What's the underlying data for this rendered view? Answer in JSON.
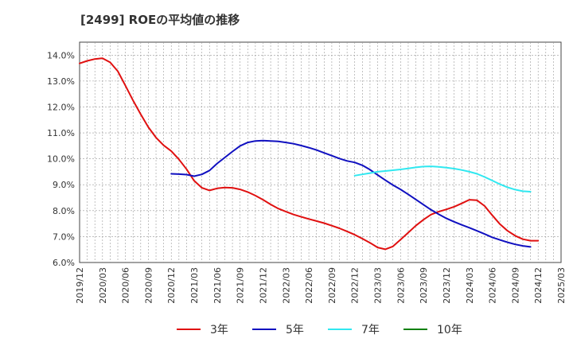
{
  "chart_data": {
    "type": "line",
    "title": "[2499]  ROEの平均値の推移",
    "xlabel": "",
    "ylabel": "",
    "ylim": [
      6.0,
      14.5
    ],
    "y_ticks": [
      "6.0%",
      "7.0%",
      "8.0%",
      "9.0%",
      "10.0%",
      "11.0%",
      "12.0%",
      "13.0%",
      "14.0%"
    ],
    "y_tick_values": [
      6,
      7,
      8,
      9,
      10,
      11,
      12,
      13,
      14
    ],
    "categories": [
      "2019/12",
      "2020/03",
      "2020/06",
      "2020/09",
      "2020/12",
      "2021/03",
      "2021/06",
      "2021/09",
      "2021/12",
      "2022/03",
      "2022/06",
      "2022/09",
      "2022/12",
      "2023/03",
      "2023/06",
      "2023/09",
      "2023/12",
      "2024/03",
      "2024/06",
      "2024/09",
      "2024/12",
      "2025/03"
    ],
    "grid": true,
    "legend_position": "bottom",
    "series": [
      {
        "name": "3年",
        "color": "#e01010",
        "points": [
          [
            0,
            13.68
          ],
          [
            1,
            13.78
          ],
          [
            2,
            13.85
          ],
          [
            3,
            13.88
          ],
          [
            4,
            13.72
          ],
          [
            5,
            13.38
          ],
          [
            6,
            12.82
          ],
          [
            7,
            12.25
          ],
          [
            8,
            11.72
          ],
          [
            9,
            11.22
          ],
          [
            10,
            10.82
          ],
          [
            11,
            10.52
          ],
          [
            12,
            10.3
          ],
          [
            13,
            9.98
          ],
          [
            14,
            9.6
          ],
          [
            15,
            9.15
          ],
          [
            16,
            8.88
          ],
          [
            17,
            8.78
          ],
          [
            18,
            8.86
          ],
          [
            19,
            8.89
          ],
          [
            20,
            8.88
          ],
          [
            21,
            8.82
          ],
          [
            22,
            8.72
          ],
          [
            23,
            8.58
          ],
          [
            24,
            8.42
          ],
          [
            25,
            8.24
          ],
          [
            26,
            8.08
          ],
          [
            27,
            7.96
          ],
          [
            28,
            7.85
          ],
          [
            29,
            7.76
          ],
          [
            30,
            7.68
          ],
          [
            31,
            7.6
          ],
          [
            32,
            7.52
          ],
          [
            33,
            7.42
          ],
          [
            34,
            7.32
          ],
          [
            35,
            7.2
          ],
          [
            36,
            7.07
          ],
          [
            37,
            6.92
          ],
          [
            38,
            6.76
          ],
          [
            39,
            6.58
          ],
          [
            40,
            6.51
          ],
          [
            41,
            6.62
          ],
          [
            42,
            6.88
          ],
          [
            43,
            7.15
          ],
          [
            44,
            7.42
          ],
          [
            45,
            7.65
          ],
          [
            46,
            7.85
          ],
          [
            47,
            7.96
          ],
          [
            48,
            8.05
          ],
          [
            49,
            8.15
          ],
          [
            50,
            8.28
          ],
          [
            51,
            8.42
          ],
          [
            52,
            8.4
          ],
          [
            53,
            8.18
          ],
          [
            54,
            7.82
          ],
          [
            55,
            7.48
          ],
          [
            56,
            7.22
          ],
          [
            57,
            7.03
          ],
          [
            58,
            6.9
          ],
          [
            59,
            6.84
          ],
          [
            60,
            6.84
          ]
        ]
      },
      {
        "name": "5年",
        "color": "#1010c0",
        "points": [
          [
            12,
            9.42
          ],
          [
            13,
            9.41
          ],
          [
            14,
            9.39
          ],
          [
            15,
            9.33
          ],
          [
            16,
            9.4
          ],
          [
            17,
            9.55
          ],
          [
            18,
            9.82
          ],
          [
            19,
            10.05
          ],
          [
            20,
            10.28
          ],
          [
            21,
            10.5
          ],
          [
            22,
            10.63
          ],
          [
            23,
            10.69
          ],
          [
            24,
            10.7
          ],
          [
            25,
            10.69
          ],
          [
            26,
            10.67
          ],
          [
            27,
            10.63
          ],
          [
            28,
            10.58
          ],
          [
            29,
            10.51
          ],
          [
            30,
            10.43
          ],
          [
            31,
            10.34
          ],
          [
            32,
            10.23
          ],
          [
            33,
            10.12
          ],
          [
            34,
            10.01
          ],
          [
            35,
            9.92
          ],
          [
            36,
            9.86
          ],
          [
            37,
            9.75
          ],
          [
            38,
            9.58
          ],
          [
            39,
            9.38
          ],
          [
            40,
            9.18
          ],
          [
            41,
            8.99
          ],
          [
            42,
            8.82
          ],
          [
            43,
            8.63
          ],
          [
            44,
            8.43
          ],
          [
            45,
            8.23
          ],
          [
            46,
            8.03
          ],
          [
            47,
            7.86
          ],
          [
            48,
            7.7
          ],
          [
            49,
            7.57
          ],
          [
            50,
            7.45
          ],
          [
            51,
            7.34
          ],
          [
            52,
            7.22
          ],
          [
            53,
            7.1
          ],
          [
            54,
            6.97
          ],
          [
            55,
            6.87
          ],
          [
            56,
            6.78
          ],
          [
            57,
            6.7
          ],
          [
            58,
            6.64
          ],
          [
            59,
            6.6
          ]
        ]
      },
      {
        "name": "7年",
        "color": "#30e8f0",
        "points": [
          [
            36,
            9.35
          ],
          [
            37,
            9.4
          ],
          [
            38,
            9.45
          ],
          [
            39,
            9.5
          ],
          [
            40,
            9.53
          ],
          [
            41,
            9.56
          ],
          [
            42,
            9.59
          ],
          [
            43,
            9.63
          ],
          [
            44,
            9.67
          ],
          [
            45,
            9.7
          ],
          [
            46,
            9.71
          ],
          [
            47,
            9.69
          ],
          [
            48,
            9.66
          ],
          [
            49,
            9.62
          ],
          [
            50,
            9.57
          ],
          [
            51,
            9.5
          ],
          [
            52,
            9.42
          ],
          [
            53,
            9.3
          ],
          [
            54,
            9.16
          ],
          [
            55,
            9.02
          ],
          [
            56,
            8.9
          ],
          [
            57,
            8.81
          ],
          [
            58,
            8.75
          ],
          [
            59,
            8.73
          ]
        ]
      },
      {
        "name": "10年",
        "color": "#108010",
        "points": []
      }
    ]
  }
}
